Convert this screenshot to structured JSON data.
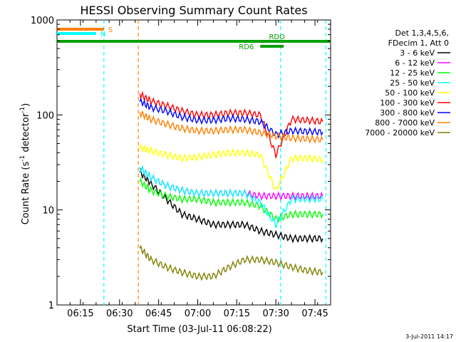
{
  "chart_data": {
    "type": "line",
    "title": "HESSI Observing Summary Count Rates",
    "xlabel": "Start Time (03-Jul-11 06:08:22)",
    "ylabel_main": "Count Rate (s",
    "ylabel_sup1": "-1",
    "ylabel_mid": " detector",
    "ylabel_sup2": "-1",
    "ylabel_end": ")",
    "y_scale": "log",
    "ylim": [
      1,
      1000
    ],
    "xlim_minutes": [
      6.1,
      7.85
    ],
    "x_ticks": [
      {
        "label": "06:15",
        "h": 6.25
      },
      {
        "label": "06:30",
        "h": 6.5
      },
      {
        "label": "06:45",
        "h": 6.75
      },
      {
        "label": "07:00",
        "h": 7.0
      },
      {
        "label": "07:15",
        "h": 7.25
      },
      {
        "label": "07:30",
        "h": 7.5
      },
      {
        "label": "07:45",
        "h": 7.75
      }
    ],
    "y_ticks": [
      {
        "label": "1",
        "v": 1
      },
      {
        "label": "10",
        "v": 10
      },
      {
        "label": "100",
        "v": 100
      },
      {
        "label": "1000",
        "v": 1000
      }
    ],
    "legend_header": [
      "Det 1,3,4,5,6,",
      "FDecim 1, Att 0"
    ],
    "legend_position": "right",
    "timestamp": "3-Jul-2011 14:17",
    "flags": [
      {
        "label": "S",
        "color": "#ff8000",
        "start": 6.1,
        "end": 6.4
      },
      {
        "label": "N",
        "color": "#00ffff",
        "start": 6.1,
        "end": 6.35
      },
      {
        "label": "RDO",
        "color": "#00a000",
        "start": 6.1,
        "end": 7.85
      },
      {
        "label": "RD6",
        "color": "#00a000",
        "start": 7.4,
        "end": 7.55
      }
    ],
    "vlines": [
      {
        "h": 6.4,
        "color": "#00ffff",
        "style": "dashed"
      },
      {
        "h": 6.62,
        "color": "#ff8000",
        "style": "dashed"
      },
      {
        "h": 7.53,
        "color": "#00ffff",
        "style": "dashed"
      },
      {
        "h": 7.82,
        "color": "#00ffff",
        "style": "dashed"
      }
    ],
    "series": [
      {
        "name": "3 - 6 keV",
        "color": "#000000",
        "x": [
          6.63,
          6.7,
          6.8,
          6.9,
          7.0,
          7.1,
          7.2,
          7.3,
          7.4,
          7.5,
          7.6,
          7.7,
          7.8
        ],
        "y": [
          25,
          19,
          13,
          9,
          8,
          7,
          7,
          7,
          6,
          5.5,
          5,
          5,
          5
        ]
      },
      {
        "name": "6 - 12 keV",
        "color": "#ff00ff",
        "x": [
          6.63,
          6.7,
          6.8,
          6.9,
          7.0,
          7.1,
          7.2,
          7.3,
          7.4,
          7.5,
          7.6,
          7.7,
          7.8
        ],
        "y": [
          28,
          22,
          18,
          16,
          15,
          15,
          15,
          15,
          14,
          14,
          14,
          14,
          14
        ]
      },
      {
        "name": "12 - 25 keV",
        "color": "#00ff00",
        "x": [
          6.63,
          6.7,
          6.8,
          6.9,
          7.0,
          7.1,
          7.2,
          7.3,
          7.4,
          7.5,
          7.6,
          7.7,
          7.8
        ],
        "y": [
          20,
          16,
          14,
          13,
          13,
          12,
          12,
          12,
          11,
          8,
          9,
          9,
          9
        ]
      },
      {
        "name": "25 - 50 keV",
        "color": "#00ffff",
        "x": [
          6.63,
          6.7,
          6.8,
          6.9,
          7.0,
          7.1,
          7.2,
          7.3,
          7.4,
          7.5,
          7.6,
          7.7,
          7.8
        ],
        "y": [
          28,
          22,
          18,
          16,
          15,
          15,
          15,
          15,
          12,
          7,
          13,
          13,
          13
        ]
      },
      {
        "name": "50 - 100 keV",
        "color": "#ffff00",
        "x": [
          6.63,
          6.7,
          6.8,
          6.9,
          7.0,
          7.1,
          7.2,
          7.3,
          7.4,
          7.5,
          7.6,
          7.7,
          7.8
        ],
        "y": [
          45,
          42,
          38,
          35,
          36,
          38,
          40,
          40,
          38,
          16,
          35,
          35,
          34
        ]
      },
      {
        "name": "100 - 300 keV",
        "color": "#ff0000",
        "x": [
          6.63,
          6.7,
          6.8,
          6.9,
          7.0,
          7.1,
          7.2,
          7.3,
          7.4,
          7.5,
          7.6,
          7.7,
          7.8
        ],
        "y": [
          165,
          140,
          125,
          110,
          100,
          100,
          105,
          105,
          100,
          38,
          90,
          88,
          85
        ]
      },
      {
        "name": "300 - 800 keV",
        "color": "#0000ff",
        "x": [
          6.63,
          6.7,
          6.8,
          6.9,
          7.0,
          7.1,
          7.2,
          7.3,
          7.4,
          7.5,
          7.6,
          7.7,
          7.8
        ],
        "y": [
          140,
          120,
          110,
          95,
          88,
          88,
          92,
          90,
          85,
          62,
          68,
          67,
          66
        ]
      },
      {
        "name": "800 - 7000 keV",
        "color": "#ff8000",
        "x": [
          6.63,
          6.7,
          6.8,
          6.9,
          7.0,
          7.1,
          7.2,
          7.3,
          7.4,
          7.5,
          7.6,
          7.7,
          7.8
        ],
        "y": [
          105,
          90,
          80,
          72,
          68,
          68,
          70,
          70,
          65,
          60,
          57,
          56,
          55
        ]
      },
      {
        "name": "7000 - 20000 keV",
        "color": "#808000",
        "x": [
          6.63,
          6.7,
          6.8,
          6.9,
          7.0,
          7.1,
          7.2,
          7.3,
          7.4,
          7.5,
          7.6,
          7.7,
          7.8
        ],
        "y": [
          4,
          3,
          2.5,
          2.2,
          2,
          2,
          2.5,
          3,
          3,
          2.8,
          2.5,
          2.3,
          2.2
        ]
      }
    ]
  }
}
